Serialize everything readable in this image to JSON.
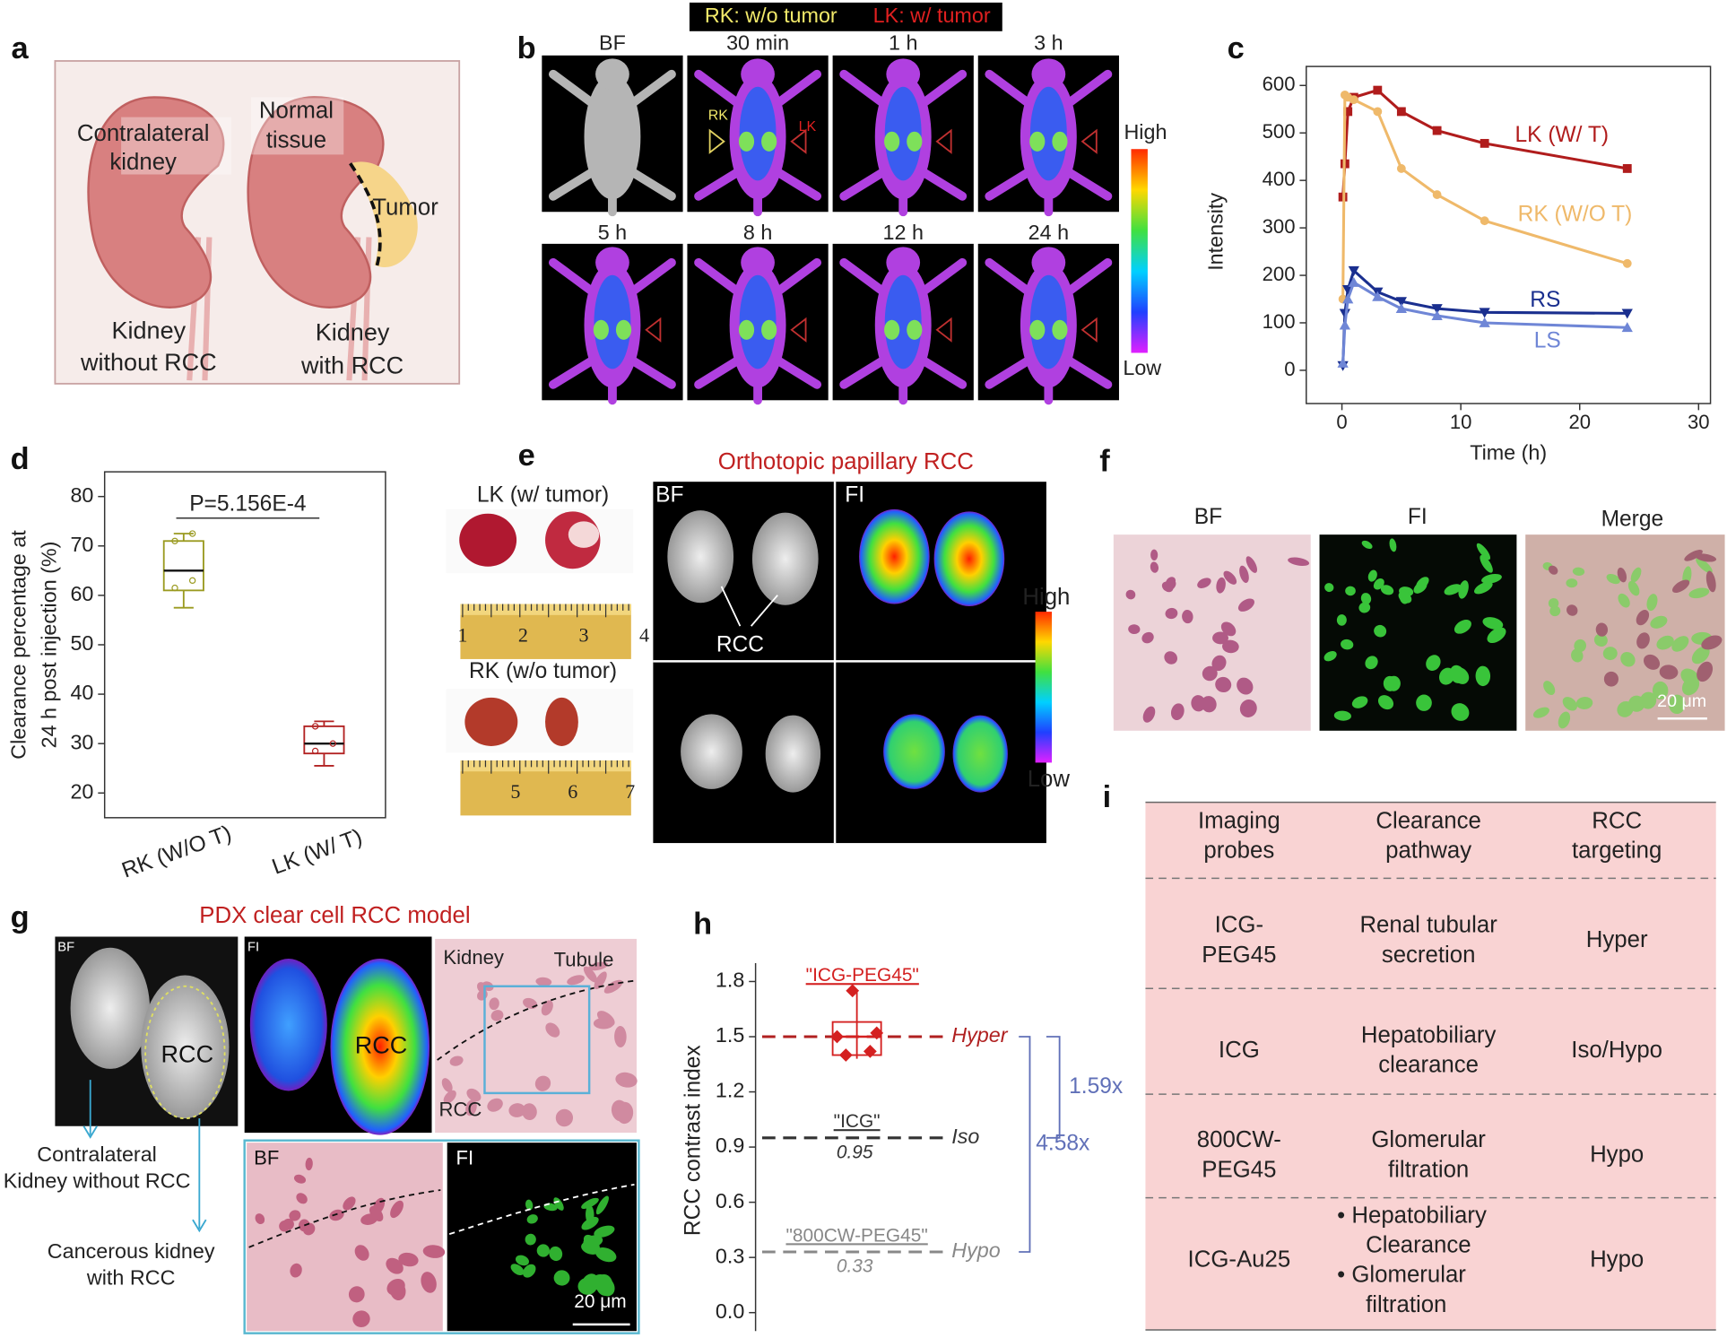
{
  "panels": [
    "a",
    "b",
    "c",
    "d",
    "e",
    "f",
    "g",
    "h",
    "i"
  ],
  "a": {
    "contralateral": [
      "Contralateral",
      "kidney"
    ],
    "normal": [
      "Normal",
      "tissue"
    ],
    "tumor": "Tumor",
    "left_caption": [
      "Kidney",
      "without RCC"
    ],
    "right_caption": [
      "Kidney",
      "with RCC"
    ]
  },
  "b": {
    "legend": [
      {
        "text": "RK: w/o tumor",
        "color": "#f2e96a"
      },
      {
        "text": "LK: w/ tumor",
        "color": "#e02020"
      }
    ],
    "times": [
      "BF",
      "30 min",
      "1 h",
      "3 h",
      "5 h",
      "8 h",
      "12 h",
      "24 h"
    ],
    "marks": [
      "RK",
      "LK"
    ],
    "scale": [
      "High",
      "Low"
    ]
  },
  "chart_data": [
    {
      "type": "line",
      "xlabel": "Time (h)",
      "ylabel": "Intensity",
      "x": [
        0.08,
        0.25,
        0.5,
        1,
        3,
        5,
        8,
        12,
        24
      ],
      "xlim": [
        -3,
        31
      ],
      "xticks": [
        0,
        10,
        20,
        30
      ],
      "ylim": [
        -70,
        640
      ],
      "yticks": [
        0,
        100,
        200,
        300,
        400,
        500,
        600
      ],
      "series": [
        {
          "name": "LK (W/ T)",
          "color": "#b01c1c",
          "marker": "square",
          "values": [
            365,
            435,
            545,
            575,
            590,
            545,
            505,
            478,
            425
          ]
        },
        {
          "name": "RK (W/O T)",
          "color": "#efb96a",
          "marker": "circle",
          "values": [
            150,
            580,
            575,
            570,
            545,
            425,
            370,
            315,
            225
          ]
        },
        {
          "name": "RS",
          "color": "#1a2f8f",
          "marker": "triangle-down",
          "values": [
            10,
            120,
            170,
            210,
            165,
            145,
            130,
            122,
            120
          ]
        },
        {
          "name": "LS",
          "color": "#6f86d6",
          "marker": "triangle-up",
          "values": [
            15,
            95,
            150,
            185,
            155,
            130,
            115,
            100,
            90
          ]
        }
      ]
    },
    {
      "type": "box",
      "ylabel": [
        "Clearance percentage at",
        "24 h post injection (%)"
      ],
      "categories": [
        "RK (W/O T)",
        "LK (W/ T)"
      ],
      "ylim": [
        15,
        85
      ],
      "yticks": [
        20,
        30,
        40,
        50,
        60,
        70,
        80
      ],
      "annotation": "P=5.156E-4",
      "boxes": [
        {
          "color": "#9a9a20",
          "min": 57.5,
          "q1": 61,
          "median": 65,
          "q3": 71,
          "max": 72.5,
          "points": [
            61.5,
            63,
            71,
            72.5
          ]
        },
        {
          "color": "#b22222",
          "min": 25.5,
          "q1": 28,
          "median": 30,
          "q3": 33.5,
          "max": 34.5,
          "points": [
            28.5,
            30,
            33.5
          ]
        }
      ]
    },
    {
      "type": "box",
      "ylabel": "RCC contrast index",
      "ylim": [
        -0.1,
        1.9
      ],
      "yticks": [
        {
          "value": 0,
          "label": "0.0"
        },
        0.3,
        0.6,
        0.9,
        1.2,
        1.5,
        1.8
      ],
      "boxes": [
        {
          "name": "\"ICG-PEG45\"",
          "color": "#d42020",
          "min": 1.38,
          "q1": 1.4,
          "median": 1.5,
          "q3": 1.58,
          "max": 1.75,
          "points": [
            1.75,
            1.52,
            1.5,
            1.42,
            1.4
          ]
        }
      ],
      "reference_lines": [
        {
          "value": 1.5,
          "label": "Hyper",
          "color": "#b02020"
        },
        {
          "name": "\"ICG\"",
          "value": 0.95,
          "label": "Iso",
          "color": "#333333"
        },
        {
          "name": "\"800CW-PEG45\"",
          "value": 0.33,
          "label": "Hypo",
          "color": "#888888"
        }
      ],
      "ratios": [
        "1.59x",
        "4.58x"
      ]
    }
  ],
  "e": {
    "title": "Orthotopic papillary RCC",
    "top_sample": "LK (w/ tumor)",
    "bottom_sample": "RK (w/o tumor)",
    "channels": [
      "BF",
      "FI"
    ],
    "arrow_label": "RCC",
    "scale": [
      "High",
      "Low"
    ],
    "ruler_top": [
      "1",
      "2",
      "3",
      "4"
    ],
    "ruler_bottom": [
      "5",
      "6",
      "7"
    ]
  },
  "f": {
    "channels": [
      "BF",
      "FI",
      "Merge"
    ],
    "scale_bar": "20 μm"
  },
  "g": {
    "title": "PDX clear cell RCC model",
    "channels": [
      "BF",
      "FI"
    ],
    "tumor": "RCC",
    "histology": [
      "Kidney",
      "Tubule",
      "RCC"
    ],
    "zoom_channels": [
      "BF",
      "FI"
    ],
    "scale_bar": "20 μm",
    "captions": [
      [
        "Contralateral",
        "Kidney without RCC"
      ],
      [
        "Cancerous kidney",
        "with RCC"
      ]
    ]
  },
  "i": {
    "header": [
      [
        "Imaging",
        "probes"
      ],
      [
        "Clearance",
        "pathway"
      ],
      [
        "RCC",
        "targeting"
      ]
    ],
    "rows": [
      [
        [
          "ICG-",
          "PEG45"
        ],
        [
          "Renal tubular",
          "secretion"
        ],
        [
          "Hyper"
        ]
      ],
      [
        [
          "ICG"
        ],
        [
          "Hepatobiliary",
          "clearance"
        ],
        [
          "Iso/Hypo"
        ]
      ],
      [
        [
          "800CW-",
          "PEG45"
        ],
        [
          "Glomerular",
          "filtration"
        ],
        [
          "Hypo"
        ]
      ],
      [
        [
          "ICG-Au25"
        ],
        [
          "• Hepatobiliary",
          "Clearance",
          "• Glomerular",
          "filtration"
        ],
        [
          "Hypo"
        ]
      ]
    ]
  }
}
